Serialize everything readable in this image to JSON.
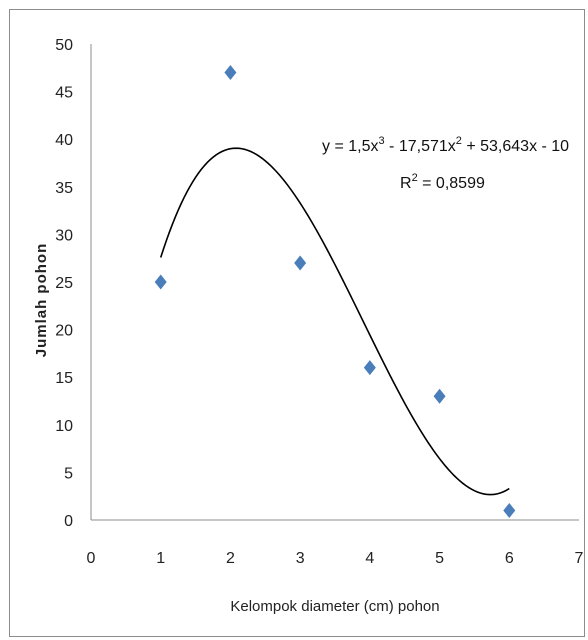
{
  "chart_data": {
    "type": "scatter",
    "xlabel": "Kelompok diameter (cm) pohon",
    "ylabel": "Jumlah pohon",
    "xlim": [
      0,
      7
    ],
    "ylim": [
      0,
      50
    ],
    "xticks": [
      0,
      1,
      2,
      3,
      4,
      5,
      6,
      7
    ],
    "yticks": [
      0,
      5,
      10,
      15,
      20,
      25,
      30,
      35,
      40,
      45,
      50
    ],
    "grid": false,
    "series": [
      {
        "x": [
          1,
          2,
          3,
          4,
          5,
          6
        ],
        "values": [
          25,
          47,
          27,
          16,
          13,
          1
        ],
        "marker": "diamond",
        "color": "#4a7ebb"
      }
    ],
    "trendline": {
      "type": "polynomial",
      "order": 3,
      "coefficients": [
        1.5,
        -17.571,
        53.643,
        -10
      ],
      "x_range": [
        1,
        6
      ],
      "color": "#000000"
    },
    "annotations": {
      "equation_prefix": "y = 1,5x",
      "sup1": "3",
      "equation_mid": " - 17,571x",
      "sup2": "2",
      "equation_suffix": " + 53,643x - 10",
      "r2_prefix": "R",
      "r2_sup": "2",
      "r2_suffix": " = 0,8599"
    }
  }
}
